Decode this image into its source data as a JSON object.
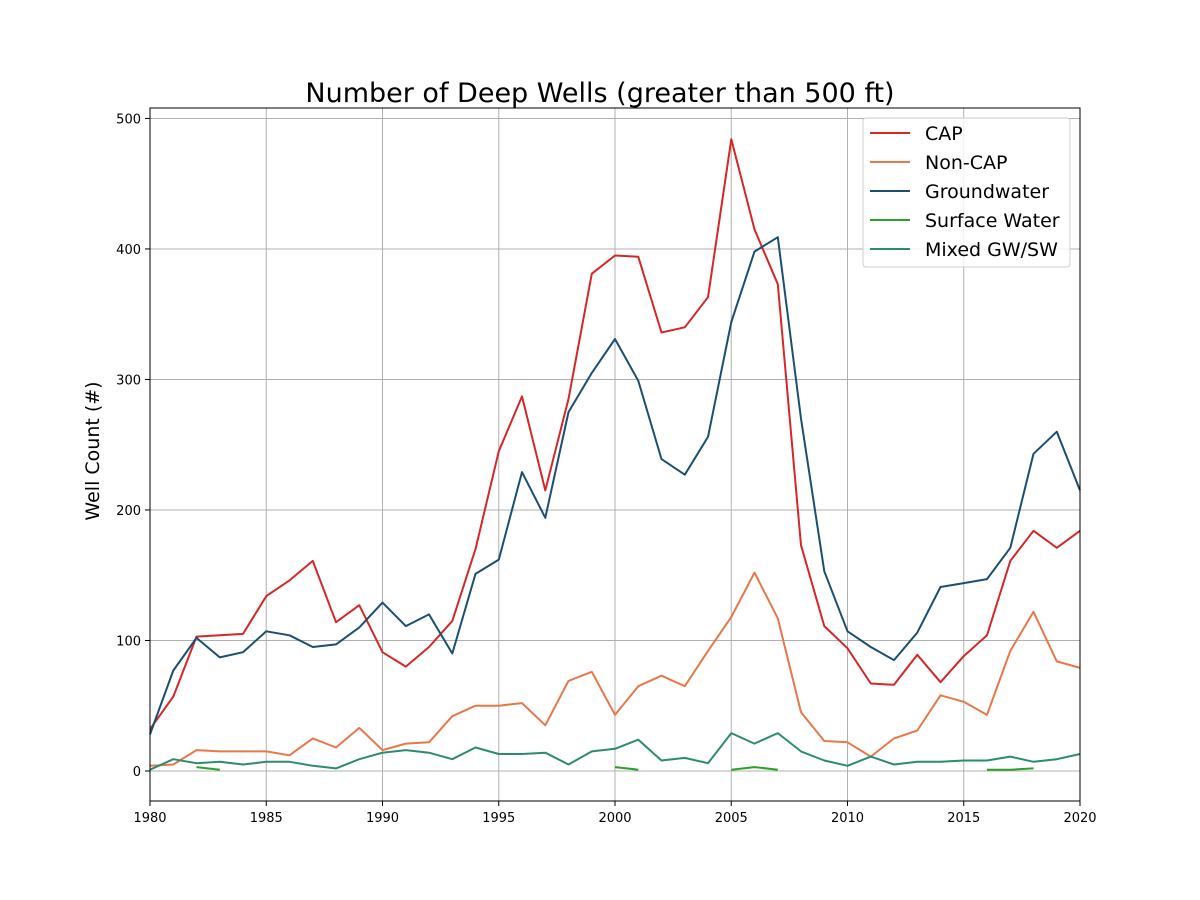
{
  "chart_data": {
    "type": "line",
    "title": "Number of Deep Wells (greater than 500 ft)",
    "xlabel": "",
    "ylabel": "Well Count (#)",
    "xlim": [
      1980,
      2020
    ],
    "ylim": [
      -23,
      508
    ],
    "x_ticks": [
      1980,
      1985,
      1990,
      1995,
      2000,
      2005,
      2010,
      2015,
      2020
    ],
    "y_ticks": [
      0,
      100,
      200,
      300,
      400,
      500
    ],
    "grid": true,
    "legend_position": "top-right",
    "x": [
      1980,
      1981,
      1982,
      1983,
      1984,
      1985,
      1986,
      1987,
      1988,
      1989,
      1990,
      1991,
      1992,
      1993,
      1994,
      1995,
      1996,
      1997,
      1998,
      1999,
      2000,
      2001,
      2002,
      2003,
      2004,
      2005,
      2006,
      2007,
      2008,
      2009,
      2010,
      2011,
      2012,
      2013,
      2014,
      2015,
      2016,
      2017,
      2018,
      2019,
      2020
    ],
    "series": [
      {
        "name": "CAP",
        "color": "#d62728",
        "values": [
          32,
          57,
          103,
          104,
          105,
          134,
          146,
          161,
          114,
          127,
          91,
          80,
          95,
          115,
          170,
          245,
          287,
          215,
          285,
          381,
          395,
          394,
          336,
          340,
          363,
          484,
          415,
          373,
          173,
          111,
          94,
          67,
          66,
          89,
          68,
          88,
          104,
          161,
          184,
          171,
          184
        ]
      },
      {
        "name": "Non-CAP",
        "color": "#e8784a",
        "values": [
          4,
          5,
          16,
          15,
          15,
          15,
          12,
          25,
          18,
          33,
          16,
          21,
          22,
          42,
          50,
          50,
          52,
          35,
          69,
          76,
          43,
          65,
          73,
          65,
          92,
          118,
          152,
          117,
          45,
          23,
          22,
          11,
          25,
          31,
          58,
          53,
          43,
          92,
          122,
          84,
          79
        ]
      },
      {
        "name": "Groundwater",
        "color": "#1b4f72",
        "values": [
          28,
          77,
          102,
          87,
          91,
          107,
          104,
          95,
          97,
          110,
          129,
          111,
          120,
          90,
          151,
          162,
          229,
          194,
          275,
          305,
          331,
          299,
          239,
          227,
          256,
          344,
          398,
          409,
          270,
          153,
          107,
          95,
          85,
          106,
          141,
          144,
          147,
          171,
          243,
          260,
          215
        ]
      },
      {
        "name": "Surface Water",
        "color": "#2ca02c",
        "values": [
          null,
          null,
          3,
          1,
          null,
          null,
          null,
          null,
          null,
          null,
          null,
          null,
          null,
          null,
          null,
          null,
          null,
          null,
          null,
          null,
          3,
          1,
          null,
          null,
          null,
          1,
          3,
          1,
          null,
          null,
          null,
          null,
          null,
          null,
          null,
          null,
          1,
          1,
          2,
          null,
          null
        ]
      },
      {
        "name": "Mixed GW/SW",
        "color": "#2e8b6e",
        "values": [
          1,
          9,
          6,
          7,
          5,
          7,
          7,
          4,
          2,
          9,
          14,
          16,
          14,
          9,
          18,
          13,
          13,
          14,
          5,
          15,
          17,
          24,
          8,
          10,
          6,
          29,
          21,
          29,
          15,
          8,
          4,
          11,
          5,
          7,
          7,
          8,
          8,
          11,
          7,
          9,
          13
        ]
      }
    ]
  }
}
